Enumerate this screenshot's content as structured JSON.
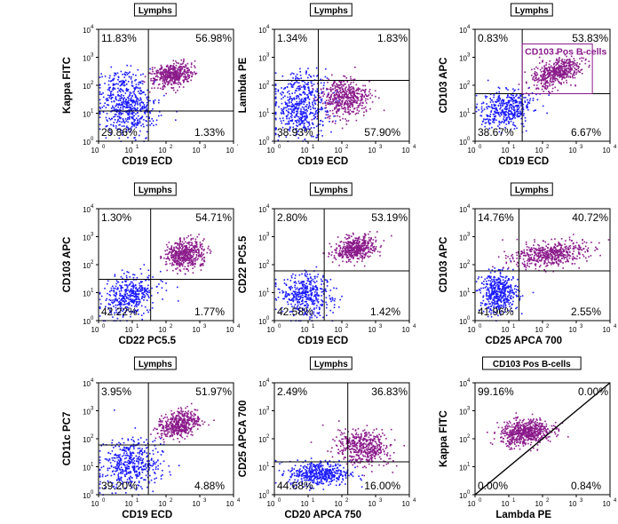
{
  "colors": {
    "negative_population": "#1a1aff",
    "positive_population": "#8b1a8b",
    "lines": "#000000"
  },
  "chart_data": [
    {
      "type": "scatter",
      "title": "Lymphs",
      "xlabel": "CD19 ECD",
      "ylabel": "Kappa FITC",
      "xlim": [
        1,
        10000
      ],
      "ylim": [
        1,
        10000
      ],
      "scale": "log",
      "x_ticks": [
        "10",
        "10",
        "10",
        "10",
        "10"
      ],
      "x_tick_exp": [
        "0",
        "1",
        "2",
        "3",
        "'"
      ],
      "y_ticks": [
        "10",
        "10",
        "10",
        "10",
        "10"
      ],
      "y_tick_exp": [
        "0",
        "1",
        "2",
        "3",
        "4"
      ],
      "quadrant_divider": {
        "x": 30,
        "y": 12
      },
      "quadrants": {
        "upper_left": "11.83%",
        "upper_right": "56.98%",
        "lower_left": "29.86%",
        "lower_right": "1.33%"
      },
      "populations": [
        {
          "name": "negative",
          "color": "#1a1aff",
          "center": [
            8,
            12
          ],
          "spread": [
            0.42,
            0.4
          ],
          "rotation": 35,
          "count": 420
        },
        {
          "name": "negative-kappa-up",
          "color": "#1a1aff",
          "center": [
            5,
            100
          ],
          "spread": [
            0.4,
            0.3
          ],
          "rotation": 0,
          "count": 170
        },
        {
          "name": "positive",
          "color": "#8b1a8b",
          "center": [
            150,
            250
          ],
          "spread": [
            0.3,
            0.2
          ],
          "rotation": 20,
          "count": 480
        }
      ]
    },
    {
      "type": "scatter",
      "title": "Lymphs",
      "xlabel": "CD19 ECD",
      "ylabel": "Lambda PE",
      "xlim": [
        1,
        10000
      ],
      "ylim": [
        1,
        10000
      ],
      "scale": "log",
      "x_ticks": [
        "10",
        "10",
        "10",
        "10",
        "10"
      ],
      "x_tick_exp": [
        "0",
        "1",
        "2",
        "3",
        "4"
      ],
      "y_ticks": [
        "10",
        "10",
        "10",
        "10",
        "10"
      ],
      "y_tick_exp": [
        "0",
        "1",
        "2",
        "3",
        "4"
      ],
      "quadrant_divider": {
        "x": 20,
        "y": 150
      },
      "quadrants": {
        "upper_left": "1.34%",
        "upper_right": "1.83%",
        "lower_left": "38.93%",
        "lower_right": "57.90%"
      },
      "populations": [
        {
          "name": "negative",
          "color": "#1a1aff",
          "center": [
            6,
            10
          ],
          "spread": [
            0.4,
            0.4
          ],
          "rotation": 30,
          "count": 380
        },
        {
          "name": "negative-lambda-up",
          "color": "#1a1aff",
          "center": [
            5,
            80
          ],
          "spread": [
            0.4,
            0.35
          ],
          "rotation": 0,
          "count": 160
        },
        {
          "name": "positive",
          "color": "#8b1a8b",
          "center": [
            120,
            40
          ],
          "spread": [
            0.35,
            0.35
          ],
          "rotation": 15,
          "count": 480
        }
      ]
    },
    {
      "type": "scatter",
      "title": "Lymphs",
      "xlabel": "CD19 ECD",
      "ylabel": "CD103 APC",
      "xlim": [
        1,
        10000
      ],
      "ylim": [
        1,
        10000
      ],
      "scale": "log",
      "x_ticks": [
        "10",
        "10",
        "10",
        "10",
        "10"
      ],
      "x_tick_exp": [
        "0",
        "1",
        "2",
        "3",
        "4"
      ],
      "y_ticks": [
        "10",
        "10",
        "10",
        "10",
        "10"
      ],
      "y_tick_exp": [
        "0",
        "1",
        "2",
        "3",
        "4"
      ],
      "quadrant_divider": {
        "x": 25,
        "y": 50
      },
      "quadrants": {
        "upper_left": "0.83%",
        "upper_right": "53.83%",
        "lower_left": "38.67%",
        "lower_right": "6.67%"
      },
      "gate": {
        "label": "CD103 Pos B-cells",
        "x_range": [
          25,
          3000
        ],
        "y_range": [
          50,
          3000
        ]
      },
      "populations": [
        {
          "name": "negative",
          "color": "#1a1aff",
          "center": [
            8,
            15
          ],
          "spread": [
            0.4,
            0.32
          ],
          "rotation": 35,
          "count": 420
        },
        {
          "name": "positive",
          "color": "#8b1a8b",
          "center": [
            250,
            300
          ],
          "spread": [
            0.4,
            0.22
          ],
          "rotation": 30,
          "count": 500
        }
      ]
    },
    {
      "type": "scatter",
      "title": "Lymphs",
      "xlabel": "CD22 PC5.5",
      "ylabel": "CD103 APC",
      "xlim": [
        1,
        10000
      ],
      "ylim": [
        1,
        10000
      ],
      "scale": "log",
      "x_ticks": [
        "10",
        "10",
        "10",
        "10",
        "10"
      ],
      "x_tick_exp": [
        "0",
        "1",
        "2",
        "3",
        "4"
      ],
      "y_ticks": [
        "10",
        "10",
        "10",
        "10",
        "10"
      ],
      "y_tick_exp": [
        "0",
        "1",
        "2",
        "3",
        "4"
      ],
      "quadrant_divider": {
        "x": 35,
        "y": 30
      },
      "quadrants": {
        "upper_left": "1.30%",
        "upper_right": "54.71%",
        "lower_left": "42.22%",
        "lower_right": "1.77%"
      },
      "populations": [
        {
          "name": "negative",
          "color": "#1a1aff",
          "center": [
            8,
            8
          ],
          "spread": [
            0.42,
            0.32
          ],
          "rotation": 35,
          "count": 420
        },
        {
          "name": "positive",
          "color": "#8b1a8b",
          "center": [
            350,
            250
          ],
          "spread": [
            0.3,
            0.25
          ],
          "rotation": 35,
          "count": 480
        }
      ]
    },
    {
      "type": "scatter",
      "title": "Lymphs",
      "xlabel": "CD19 ECD",
      "ylabel": "CD22 PC5.5",
      "xlim": [
        1,
        10000
      ],
      "ylim": [
        1,
        10000
      ],
      "scale": "log",
      "x_ticks": [
        "10",
        "10",
        "10",
        "10",
        "10"
      ],
      "x_tick_exp": [
        "0",
        "1",
        "2",
        "3",
        "4"
      ],
      "y_ticks": [
        "10",
        "10",
        "10",
        "10",
        "10"
      ],
      "y_tick_exp": [
        "0",
        "1",
        "2",
        "3",
        "4"
      ],
      "quadrant_divider": {
        "x": 30,
        "y": 60
      },
      "quadrants": {
        "upper_left": "2.80%",
        "upper_right": "53.19%",
        "lower_left": "42.58%",
        "lower_right": "1.42%"
      },
      "populations": [
        {
          "name": "negative",
          "color": "#1a1aff",
          "center": [
            8,
            8
          ],
          "spread": [
            0.4,
            0.38
          ],
          "rotation": 45,
          "count": 420
        },
        {
          "name": "positive",
          "color": "#8b1a8b",
          "center": [
            250,
            400
          ],
          "spread": [
            0.32,
            0.2
          ],
          "rotation": 20,
          "count": 480
        }
      ]
    },
    {
      "type": "scatter",
      "title": "Lymphs",
      "xlabel": "CD25 APCA 700",
      "ylabel": "CD103 APC",
      "xlim": [
        1,
        10000
      ],
      "ylim": [
        1,
        10000
      ],
      "scale": "log",
      "x_ticks": [
        "10",
        "10",
        "10",
        "10",
        "10"
      ],
      "x_tick_exp": [
        "0",
        "1",
        "2",
        "3",
        "4"
      ],
      "y_ticks": [
        "10",
        "10",
        "10",
        "10",
        "10"
      ],
      "y_tick_exp": [
        "0",
        "1",
        "2",
        "3",
        "4"
      ],
      "quadrant_divider": {
        "x": 20,
        "y": 60
      },
      "quadrants": {
        "upper_left": "14.76%",
        "upper_right": "40.72%",
        "lower_left": "41.96%",
        "lower_right": "2.55%"
      },
      "populations": [
        {
          "name": "negative",
          "color": "#1a1aff",
          "center": [
            5,
            10
          ],
          "spread": [
            0.28,
            0.35
          ],
          "rotation": 0,
          "count": 460
        },
        {
          "name": "positive",
          "color": "#8b1a8b",
          "center": [
            150,
            250
          ],
          "spread": [
            0.55,
            0.22
          ],
          "rotation": 8,
          "count": 520
        }
      ]
    },
    {
      "type": "scatter",
      "title": "Lymphs",
      "xlabel": "CD19 ECD",
      "ylabel": "CD11c PC7",
      "xlim": [
        1,
        10000
      ],
      "ylim": [
        1,
        10000
      ],
      "scale": "log",
      "x_ticks": [
        "10",
        "10",
        "10",
        "10",
        "10"
      ],
      "x_tick_exp": [
        "0",
        "1",
        "2",
        "3",
        "4"
      ],
      "y_ticks": [
        "10",
        "10",
        "10",
        "10",
        "10"
      ],
      "y_tick_exp": [
        "0",
        "1",
        "2",
        "3",
        "4"
      ],
      "quadrant_divider": {
        "x": 30,
        "y": 60
      },
      "quadrants": {
        "upper_left": "3.95%",
        "upper_right": "51.97%",
        "lower_left": "39.20%",
        "lower_right": "4.88%"
      },
      "populations": [
        {
          "name": "negative",
          "color": "#1a1aff",
          "center": [
            8,
            12
          ],
          "spread": [
            0.48,
            0.42
          ],
          "rotation": 40,
          "count": 460
        },
        {
          "name": "positive",
          "color": "#8b1a8b",
          "center": [
            250,
            350
          ],
          "spread": [
            0.32,
            0.22
          ],
          "rotation": 25,
          "count": 480
        }
      ]
    },
    {
      "type": "scatter",
      "title": "Lymphs",
      "xlabel": "CD20 APCA 750",
      "ylabel": "CD25 APCA 700",
      "xlim": [
        1,
        10000
      ],
      "ylim": [
        1,
        10000
      ],
      "scale": "log",
      "x_ticks": [
        "10",
        "10",
        "10",
        "10",
        "10"
      ],
      "x_tick_exp": [
        "0",
        "1",
        "2",
        "3",
        "4"
      ],
      "y_ticks": [
        "10",
        "10",
        "10",
        "10",
        "10"
      ],
      "y_tick_exp": [
        "0",
        "1",
        "2",
        "3",
        "4"
      ],
      "quadrant_divider": {
        "x": 150,
        "y": 15
      },
      "quadrants": {
        "upper_left": "2.49%",
        "upper_right": "36.83%",
        "lower_left": "44.68%",
        "lower_right": "16.00%"
      },
      "populations": [
        {
          "name": "negative",
          "color": "#1a1aff",
          "center": [
            20,
            6
          ],
          "spread": [
            0.45,
            0.22
          ],
          "rotation": 0,
          "count": 460
        },
        {
          "name": "positive",
          "color": "#8b1a8b",
          "center": [
            400,
            50
          ],
          "spread": [
            0.3,
            0.4
          ],
          "rotation": 60,
          "count": 480
        }
      ]
    },
    {
      "type": "scatter",
      "title": "CD103 Pos B-cells",
      "xlabel": "Lambda PE",
      "ylabel": "Kappa FITC",
      "xlim": [
        1,
        10000
      ],
      "ylim": [
        1,
        10000
      ],
      "scale": "log",
      "x_ticks": [
        "10",
        "10",
        "10",
        "10",
        "10"
      ],
      "x_tick_exp": [
        "0",
        "1",
        "2",
        "3",
        "4"
      ],
      "y_ticks": [
        "10",
        "10",
        "10",
        "10",
        "10"
      ],
      "y_tick_exp": [
        "0",
        "1",
        "2",
        "3",
        "4"
      ],
      "diagonal_gate": true,
      "quadrants": {
        "upper_left": "99.16%",
        "upper_right": "0.00%",
        "lower_left": "0.00%",
        "lower_right": "0.84%"
      },
      "populations": [
        {
          "name": "positive",
          "color": "#8b1a8b",
          "center": [
            30,
            180
          ],
          "spread": [
            0.38,
            0.22
          ],
          "rotation": 10,
          "count": 620
        }
      ]
    }
  ]
}
